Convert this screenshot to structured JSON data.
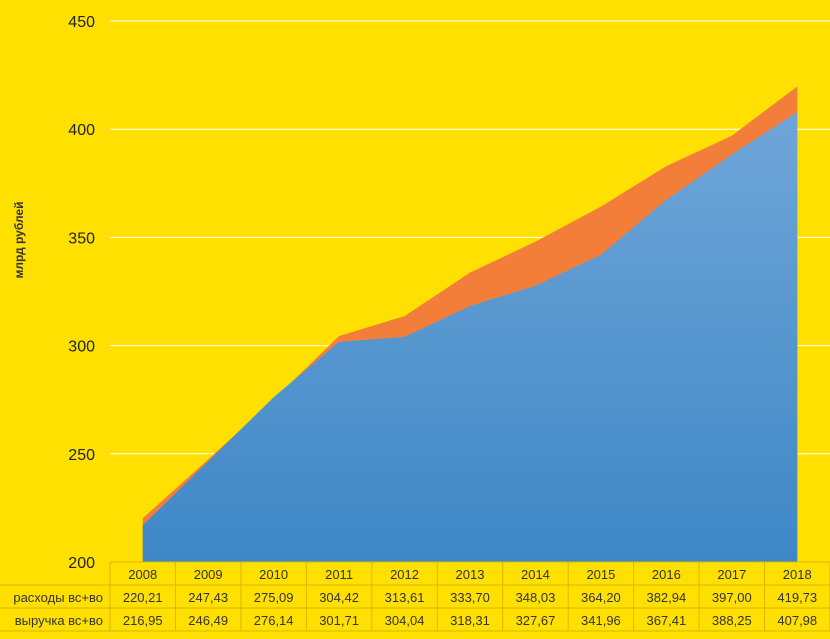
{
  "colors": {
    "background": "#FFE000",
    "gridline": "#FFFFFF",
    "expenses_area": "#F37E3A",
    "revenue_area_top": "#6FA6D8",
    "revenue_area_bottom": "#3E87C6",
    "table_border": "#D9B800",
    "text": "#333333"
  },
  "chart_data": {
    "type": "area",
    "title": "",
    "xlabel": "",
    "ylabel": "млрд рублей",
    "ylim": [
      200,
      450
    ],
    "yticks": [
      200,
      250,
      300,
      350,
      400,
      450
    ],
    "grid": true,
    "categories": [
      "2008",
      "2009",
      "2010",
      "2011",
      "2012",
      "2013",
      "2014",
      "2015",
      "2016",
      "2017",
      "2018"
    ],
    "series": [
      {
        "name": "расходы вс+во",
        "values": [
          220.21,
          247.43,
          275.09,
          304.42,
          313.61,
          333.7,
          348.03,
          364.2,
          382.94,
          397.0,
          419.73
        ],
        "display": [
          "220,21",
          "247,43",
          "275,09",
          "304,42",
          "313,61",
          "333,70",
          "348,03",
          "364,20",
          "382,94",
          "397,00",
          "419,73"
        ],
        "color": "#F37E3A"
      },
      {
        "name": "выручка вс+во",
        "values": [
          216.95,
          246.49,
          276.14,
          301.71,
          304.04,
          318.31,
          327.67,
          341.96,
          367.41,
          388.25,
          407.98
        ],
        "display": [
          "216,95",
          "246,49",
          "276,14",
          "301,71",
          "304,04",
          "318,31",
          "327,67",
          "341,96",
          "367,41",
          "388,25",
          "407,98"
        ],
        "color": "#4A8FCB"
      }
    ],
    "data_table": {
      "row_labels": [
        "расходы вс+во",
        "выручка вс+во"
      ]
    }
  }
}
